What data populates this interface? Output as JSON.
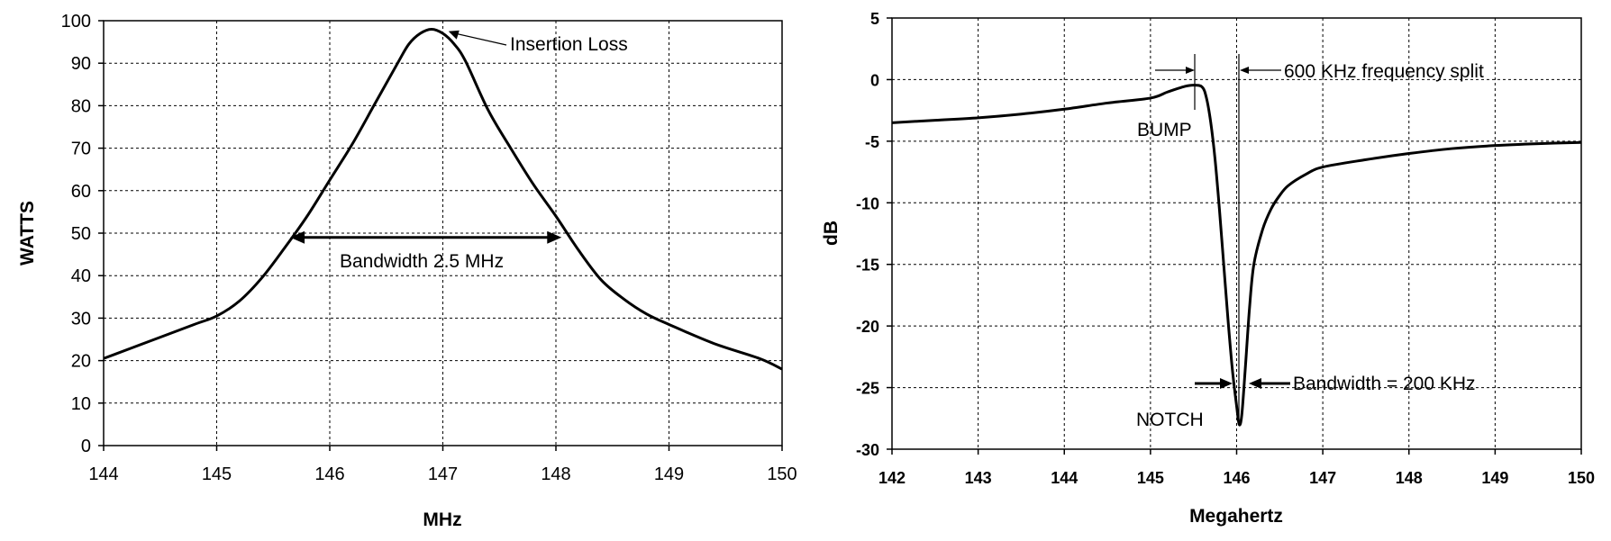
{
  "chart_data": [
    {
      "type": "line",
      "title": "",
      "xlabel": "MHz",
      "ylabel": "WATTS",
      "xlim": [
        144,
        150
      ],
      "ylim": [
        0,
        100
      ],
      "xticks": [
        "144",
        "145",
        "146",
        "147",
        "148",
        "149",
        "150"
      ],
      "yticks": [
        "0",
        "10",
        "20",
        "30",
        "40",
        "50",
        "60",
        "70",
        "80",
        "90",
        "100"
      ],
      "grid": true,
      "series": [
        {
          "x": [
            144.0,
            144.4,
            144.8,
            145.0,
            145.2,
            145.4,
            145.6,
            145.8,
            146.0,
            146.2,
            146.4,
            146.6,
            146.7,
            146.8,
            146.9,
            147.0,
            147.1,
            147.2,
            147.4,
            147.6,
            147.8,
            148.0,
            148.2,
            148.4,
            148.6,
            148.8,
            149.0,
            149.4,
            149.8,
            150.0
          ],
          "y": [
            20.5,
            24.5,
            28.5,
            30.5,
            34.0,
            39.5,
            46.5,
            54.0,
            62.5,
            71.0,
            80.5,
            90.0,
            94.5,
            97.0,
            98.0,
            97.0,
            94.5,
            90.5,
            79.0,
            70.0,
            61.5,
            54.0,
            46.0,
            39.0,
            34.5,
            31.0,
            28.5,
            24.0,
            20.5,
            18.0
          ]
        }
      ],
      "annotations": [
        {
          "text": "Insertion Loss",
          "x": 147.05,
          "y": 97.5
        },
        {
          "text": "Bandwidth 2.5 MHz",
          "from": 145.65,
          "to": 148.05,
          "y": 49
        }
      ]
    },
    {
      "type": "line",
      "title": "",
      "xlabel": "Megahertz",
      "ylabel": "dB",
      "xlim": [
        142,
        150
      ],
      "ylim": [
        -30,
        5
      ],
      "xticks": [
        "142",
        "143",
        "144",
        "145",
        "146",
        "147",
        "148",
        "149",
        "150"
      ],
      "yticks": [
        "5",
        "0",
        "-5",
        "-10",
        "-15",
        "-20",
        "-25",
        "-30"
      ],
      "grid": true,
      "series": [
        {
          "x": [
            142.0,
            142.5,
            143.0,
            143.5,
            144.0,
            144.5,
            145.0,
            145.2,
            145.4,
            145.5,
            145.6,
            145.65,
            145.7,
            145.75,
            145.8,
            145.85,
            145.9,
            145.95,
            146.0,
            146.03,
            146.06,
            146.1,
            146.15,
            146.2,
            146.3,
            146.4,
            146.5,
            146.6,
            146.8,
            147.0,
            147.5,
            148.0,
            148.5,
            149.0,
            149.5,
            150.0
          ],
          "y": [
            -3.5,
            -3.3,
            -3.1,
            -2.8,
            -2.4,
            -1.9,
            -1.5,
            -1.0,
            -0.55,
            -0.45,
            -0.6,
            -1.5,
            -3.5,
            -6.5,
            -10.5,
            -15.0,
            -19.5,
            -23.5,
            -26.5,
            -28.0,
            -27.2,
            -23.5,
            -18.5,
            -15.0,
            -12.2,
            -10.5,
            -9.4,
            -8.6,
            -7.7,
            -7.1,
            -6.5,
            -6.0,
            -5.6,
            -5.35,
            -5.2,
            -5.1
          ]
        }
      ],
      "annotations": [
        {
          "text": "BUMP",
          "x": 145.5,
          "y": -0.4
        },
        {
          "text": "600 KHz frequency split",
          "from": 145.5,
          "to": 146.05
        },
        {
          "text": "NOTCH",
          "x": 146.03,
          "y": -28
        },
        {
          "text": "Bandwidth = 200 KHz",
          "from": 145.95,
          "to": 146.12,
          "y": -24.8
        }
      ]
    }
  ]
}
